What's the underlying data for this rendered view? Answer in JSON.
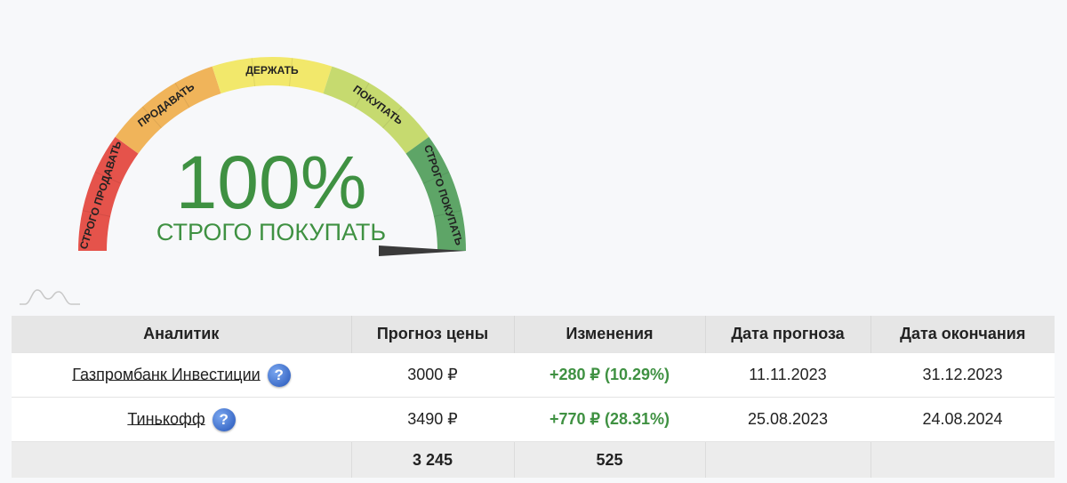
{
  "gauge": {
    "percent_text": "100%",
    "status_text": "СТРОГО ПОКУПАТЬ",
    "level": 1.0,
    "segments": [
      {
        "label": "СТРОГО ПРОДАВАТЬ",
        "color": "#e5534b"
      },
      {
        "label": "ПРОДАВАТЬ",
        "color": "#f0b45a"
      },
      {
        "label": "ДЕРЖАТЬ",
        "color": "#f2e86b"
      },
      {
        "label": "ПОКУПАТЬ",
        "color": "#c6da6f"
      },
      {
        "label": "СТРОГО ПОКУПАТЬ",
        "color": "#5ea567"
      }
    ]
  },
  "table": {
    "headers": [
      "Аналитик",
      "Прогноз цены",
      "Изменения",
      "Дата прогноза",
      "Дата окончания"
    ],
    "rows": [
      {
        "analyst": "Газпромбанк Инвестиции",
        "price": "3000 ₽",
        "change": "+280 ₽ (10.29%)",
        "forecast_date": "11.11.2023",
        "end_date": "31.12.2023"
      },
      {
        "analyst": "Тинькофф",
        "price": "3490 ₽",
        "change": "+770 ₽ (28.31%)",
        "forecast_date": "25.08.2023",
        "end_date": "24.08.2024"
      }
    ],
    "totals": {
      "price": "3 245",
      "change": "525"
    }
  },
  "help_icon": {
    "glyph": "?"
  },
  "colors": {
    "positive": "#3f9142"
  }
}
